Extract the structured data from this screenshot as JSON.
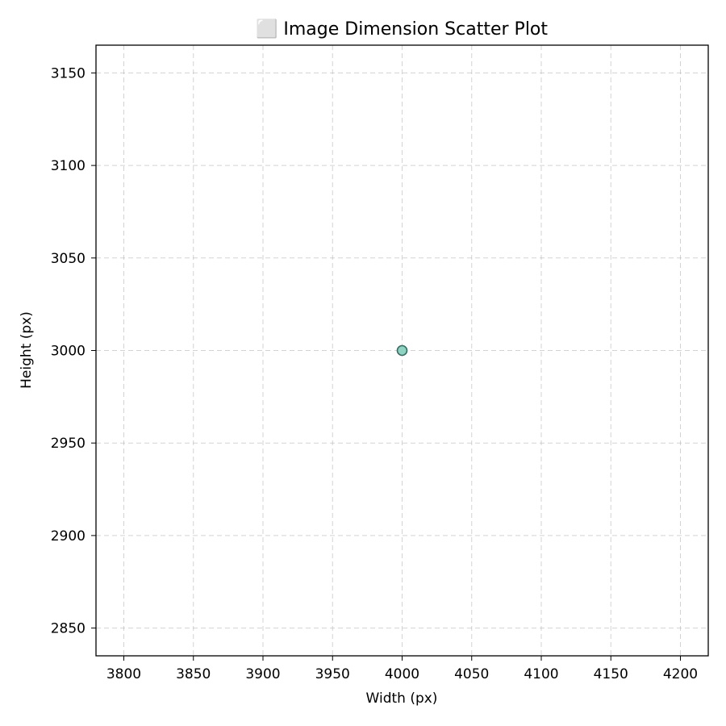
{
  "chart_data": {
    "type": "scatter",
    "title": "⬜ Image Dimension Scatter Plot",
    "xlabel": "Width (px)",
    "ylabel": "Height (px)",
    "xlim": [
      3780,
      4220
    ],
    "ylim": [
      2835,
      3165
    ],
    "xticks": [
      3800,
      3850,
      3900,
      3950,
      4000,
      4050,
      4100,
      4150,
      4200
    ],
    "yticks": [
      2850,
      2900,
      2950,
      3000,
      3050,
      3100,
      3150
    ],
    "grid": true,
    "series": [
      {
        "points": [
          {
            "x": 4000,
            "y": 3000
          }
        ]
      }
    ],
    "colors": {
      "marker_fill": "#8fd3c3",
      "marker_edge": "#3b6b62"
    }
  }
}
